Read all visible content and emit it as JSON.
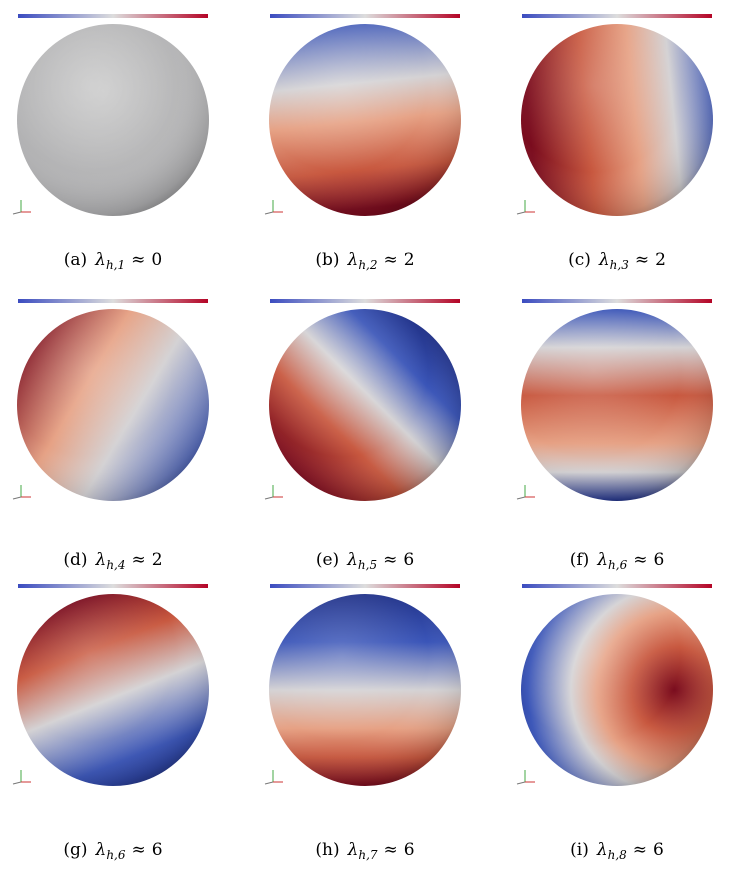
{
  "figure": {
    "symbol": "λ",
    "relation": "≈",
    "panels": [
      {
        "label": "(a)",
        "subscript": "h,1",
        "value": "0"
      },
      {
        "label": "(b)",
        "subscript": "h,2",
        "value": "2"
      },
      {
        "label": "(c)",
        "subscript": "h,3",
        "value": "2"
      },
      {
        "label": "(d)",
        "subscript": "h,4",
        "value": "2"
      },
      {
        "label": "(e)",
        "subscript": "h,5",
        "value": "6"
      },
      {
        "label": "(f)",
        "subscript": "h,6",
        "value": "6"
      },
      {
        "label": "(g)",
        "subscript": "h,6",
        "value": "6"
      },
      {
        "label": "(h)",
        "subscript": "h,7",
        "value": "6"
      },
      {
        "label": "(i)",
        "subscript": "h,8",
        "value": "6"
      }
    ]
  }
}
